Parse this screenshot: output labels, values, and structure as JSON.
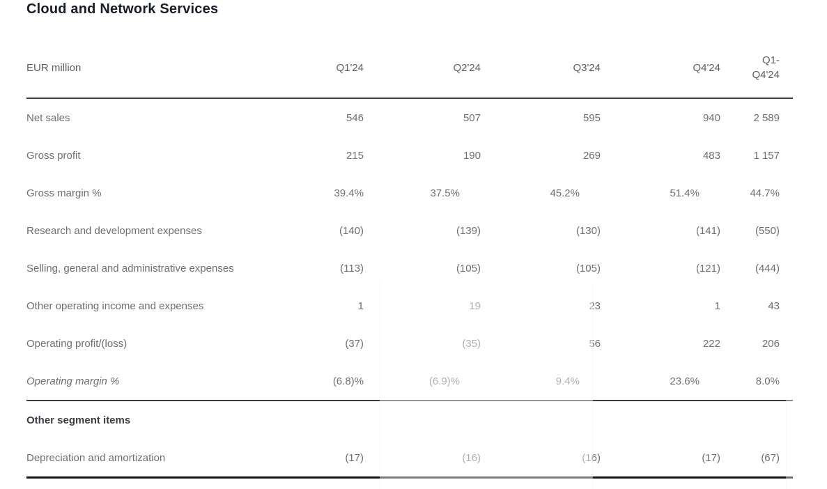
{
  "title": "Cloud and Network Services",
  "table": {
    "unit_label": "EUR million",
    "columns": [
      "Q1'24",
      "Q2'24",
      "Q3'24",
      "Q4'24",
      "Q1-Q4'24"
    ],
    "rows": [
      {
        "label": "Net sales",
        "values": [
          "546",
          "507",
          "595",
          "940",
          "2 589"
        ]
      },
      {
        "label": "Gross profit",
        "values": [
          "215",
          "190",
          "269",
          "483",
          "1 157"
        ]
      },
      {
        "label": "Gross margin %",
        "values": [
          "39.4%",
          "37.5%",
          "45.2%",
          "51.4%",
          "44.7%"
        ],
        "percent_row": true
      },
      {
        "label": "Research and development expenses",
        "values": [
          "(140)",
          "(139)",
          "(130)",
          "(141)",
          "(550)"
        ]
      },
      {
        "label": "Selling, general and administrative expenses",
        "values": [
          "(113)",
          "(105)",
          "(105)",
          "(121)",
          "(444)"
        ]
      },
      {
        "label": "Other operating income and expenses",
        "values": [
          "1",
          "19",
          "23",
          "1",
          "43"
        ]
      },
      {
        "label": "Operating profit/(loss)",
        "values": [
          "(37)",
          "(35)",
          "56",
          "222",
          "206"
        ]
      },
      {
        "label": "Operating margin %",
        "values": [
          "(6.8)%",
          "(6.9)%",
          "9.4%",
          "23.6%",
          "8.0%"
        ],
        "percent_row": true,
        "italic": true
      },
      {
        "label": "Other segment items",
        "values": [
          "",
          "",
          "",
          "",
          ""
        ],
        "section": true
      },
      {
        "label": "Depreciation and amortization",
        "values": [
          "(17)",
          "(16)",
          "(16)",
          "(17)",
          "(67)"
        ]
      }
    ]
  },
  "colors": {
    "title_text": "#181c2b",
    "header_text": "#5e5e5e",
    "body_text": "#6f6f6f",
    "section_text": "#3b3c42",
    "rule_dark": "#3e3e3e",
    "rule_heavy": "#131313",
    "background": "#ffffff"
  }
}
